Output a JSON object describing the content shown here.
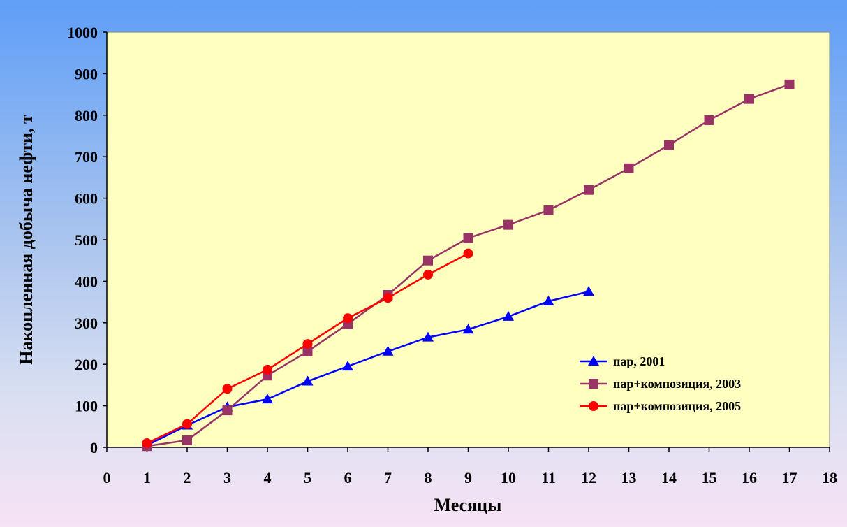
{
  "chart_data": {
    "type": "line",
    "title": "",
    "xlabel": "Месяцы",
    "ylabel": "Накопленная добыча нефти, т",
    "xlim": [
      0,
      18
    ],
    "ylim": [
      0,
      1000
    ],
    "xticks": [
      0,
      1,
      2,
      3,
      4,
      5,
      6,
      7,
      8,
      9,
      10,
      11,
      12,
      13,
      14,
      15,
      16,
      17,
      18
    ],
    "yticks": [
      0,
      100,
      200,
      300,
      400,
      500,
      600,
      700,
      800,
      900,
      1000
    ],
    "grid": false,
    "legend_position": "right",
    "series": [
      {
        "name": "пар, 2001",
        "color": "#0000ff",
        "marker": "triangle",
        "x": [
          1,
          2,
          3,
          4,
          5,
          6,
          7,
          8,
          9,
          10,
          11,
          12
        ],
        "y": [
          5,
          53,
          97,
          116,
          159,
          195,
          231,
          265,
          284,
          315,
          352,
          375
        ]
      },
      {
        "name": "пар+композиция, 2003",
        "color": "#993366",
        "marker": "square",
        "x": [
          1,
          2,
          3,
          4,
          5,
          6,
          7,
          8,
          9,
          10,
          11,
          12,
          13,
          14,
          15,
          16,
          17
        ],
        "y": [
          3,
          17,
          89,
          173,
          231,
          297,
          367,
          450,
          504,
          536,
          571,
          620,
          672,
          728,
          788,
          839,
          874
        ]
      },
      {
        "name": "пар+композиция, 2005",
        "color": "#ff0000",
        "marker": "circle",
        "x": [
          1,
          2,
          3,
          4,
          5,
          6,
          7,
          8,
          9
        ],
        "y": [
          10,
          56,
          141,
          187,
          249,
          311,
          360,
          416,
          467
        ]
      }
    ]
  }
}
